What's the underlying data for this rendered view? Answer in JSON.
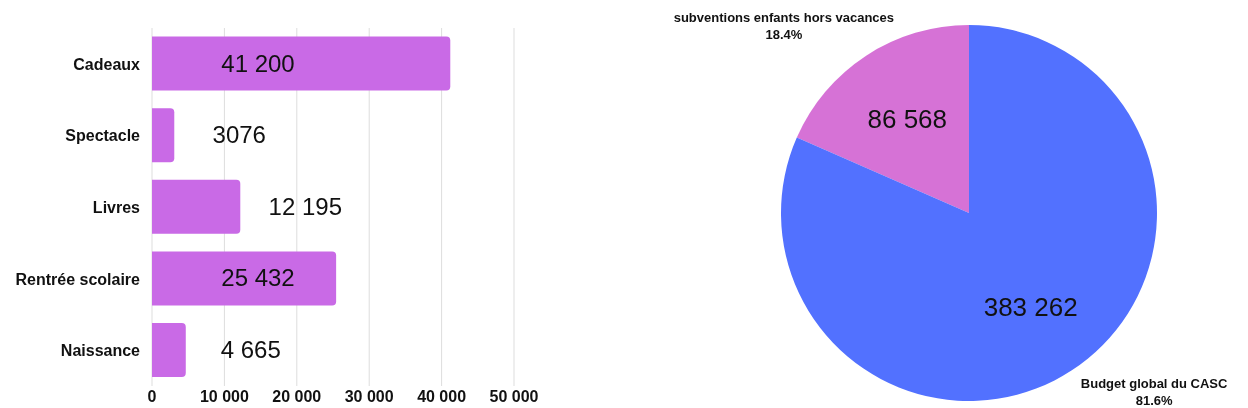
{
  "chart_data": [
    {
      "type": "bar",
      "orientation": "horizontal",
      "categories": [
        "Cadeaux",
        "Spectacle",
        "Livres",
        "Rentrée scolaire",
        "Naissance"
      ],
      "values": [
        41200,
        3076,
        12195,
        25432,
        4665
      ],
      "color": "#c96ae6",
      "value_labels": [
        "41 200",
        "3076",
        "12 195",
        "25 432",
        "4 665"
      ],
      "xlim": [
        0,
        50000
      ],
      "xticks": [
        0,
        {
          "value": 10000,
          "label": "10 000"
        },
        {
          "value": 20000,
          "label": "20 000"
        },
        {
          "value": 30000,
          "label": "30 000"
        },
        {
          "value": 40000,
          "label": "40 000"
        },
        {
          "value": 50000,
          "label": "50 000"
        }
      ],
      "grid": "x"
    },
    {
      "type": "pie",
      "categories": [
        "subventions enfants hors vacances",
        "Budget global du CASC"
      ],
      "values": [
        86568,
        383262
      ],
      "colors": [
        "#d672d6",
        "#5271ff"
      ],
      "value_labels": [
        "86 568",
        "383 262"
      ],
      "annotations": [
        "18.4%",
        "81.6%"
      ]
    }
  ]
}
